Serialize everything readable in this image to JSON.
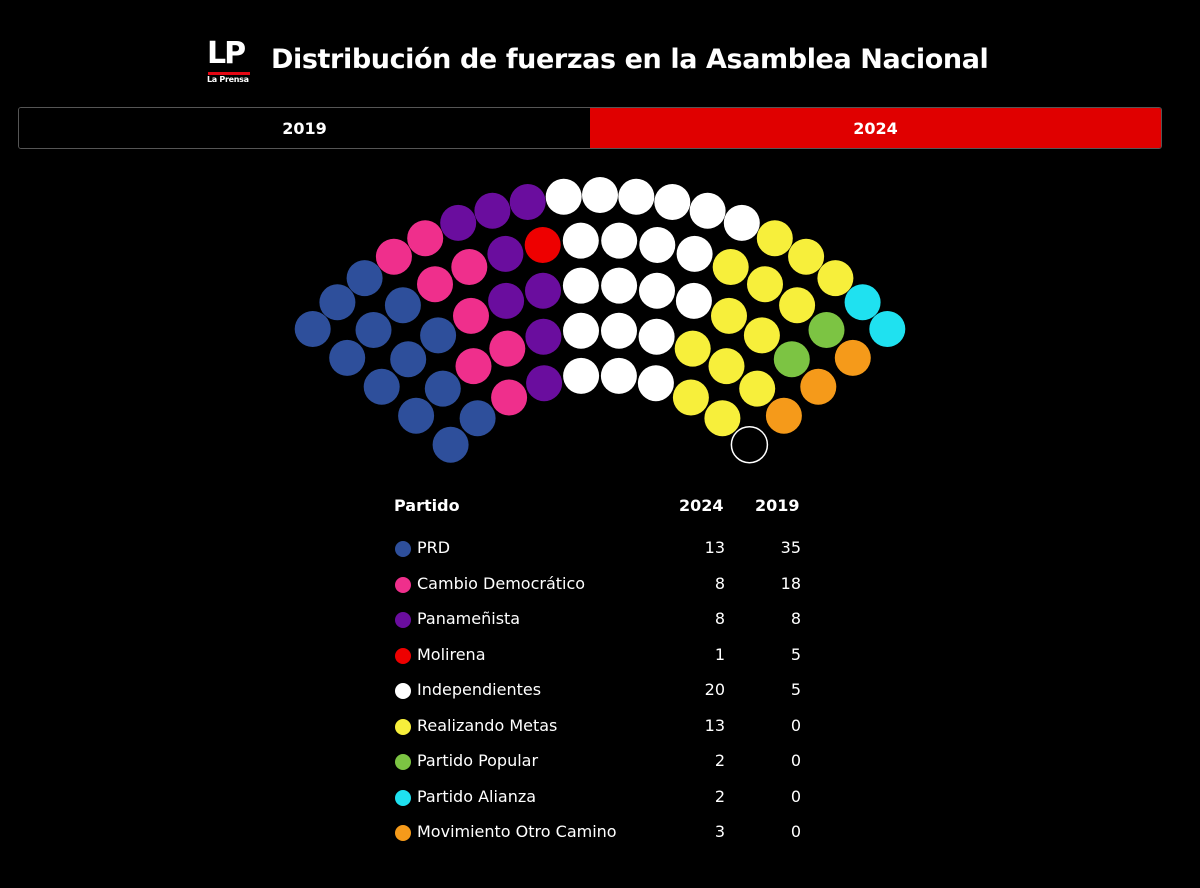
{
  "header": {
    "logo_text": "LP",
    "logo_subtext": "La Prensa",
    "title": "Distribución de fuerzas en la Asamblea Nacional"
  },
  "tabs": [
    {
      "label": "2019",
      "active": false
    },
    {
      "label": "2024",
      "active": true
    }
  ],
  "colors": {
    "active_tab": "#e00000",
    "background": "#000000",
    "vacant_seat_stroke": "#ffffff"
  },
  "chart_data": {
    "type": "parliament",
    "selected_year": "2024",
    "columns": {
      "party": "Partido",
      "y2024": "2024",
      "y2019": "2019"
    },
    "parties": [
      {
        "name": "PRD",
        "color": "#2e4f9b",
        "seats_2024": 13,
        "seats_2019": 35
      },
      {
        "name": "Cambio Democrático",
        "color": "#ef2f8c",
        "seats_2024": 8,
        "seats_2019": 18
      },
      {
        "name": "Panameñista",
        "color": "#6a0d9e",
        "seats_2024": 8,
        "seats_2019": 8
      },
      {
        "name": "Molirena",
        "color": "#ee0000",
        "seats_2024": 1,
        "seats_2019": 5
      },
      {
        "name": "Independientes",
        "color": "#ffffff",
        "seats_2024": 20,
        "seats_2019": 5
      },
      {
        "name": "Realizando Metas",
        "color": "#f7ef3b",
        "seats_2024": 13,
        "seats_2019": 0
      },
      {
        "name": "Partido Popular",
        "color": "#7cc443",
        "seats_2024": 2,
        "seats_2019": 0
      },
      {
        "name": "Partido Alianza",
        "color": "#1fe1f0",
        "seats_2024": 2,
        "seats_2019": 0
      },
      {
        "name": "Movimiento Otro Camino",
        "color": "#f59a1a",
        "seats_2024": 3,
        "seats_2019": 0
      }
    ],
    "vacant_seats": 1
  }
}
